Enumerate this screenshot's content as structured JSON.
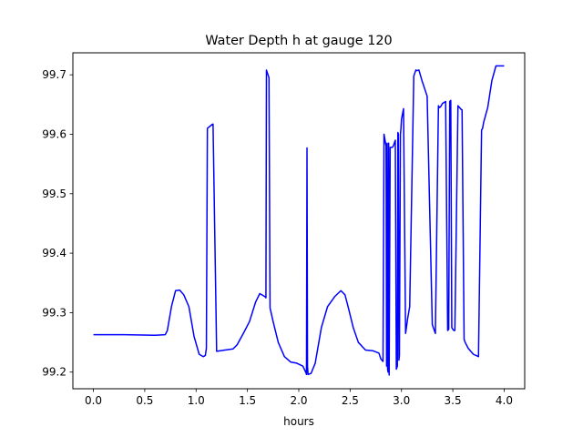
{
  "chart_data": {
    "type": "line",
    "title": "Water Depth h at gauge 120",
    "xlabel": "hours",
    "ylabel": "",
    "xlim": [
      -0.2,
      4.2
    ],
    "ylim": [
      99.172,
      99.737
    ],
    "xticks": [
      "0.0",
      "0.5",
      "1.0",
      "1.5",
      "2.0",
      "2.5",
      "3.0",
      "3.5",
      "4.0"
    ],
    "yticks": [
      "99.2",
      "99.3",
      "99.4",
      "99.5",
      "99.6",
      "99.7"
    ],
    "grid": false,
    "legend": "none",
    "series": [
      {
        "color": "#0000ff",
        "x": [
          0.0,
          0.3,
          0.6,
          0.7,
          0.72,
          0.76,
          0.8,
          0.84,
          0.88,
          0.93,
          0.98,
          1.03,
          1.07,
          1.09,
          1.1,
          1.11,
          1.16,
          1.165,
          1.2,
          1.28,
          1.36,
          1.4,
          1.46,
          1.52,
          1.58,
          1.62,
          1.67,
          1.68,
          1.685,
          1.71,
          1.72,
          1.75,
          1.8,
          1.86,
          1.92,
          1.98,
          2.04,
          2.07,
          2.075,
          2.08,
          2.085,
          2.09,
          2.12,
          2.16,
          2.22,
          2.28,
          2.35,
          2.41,
          2.45,
          2.48,
          2.53,
          2.58,
          2.65,
          2.72,
          2.78,
          2.8,
          2.82,
          2.83,
          2.84,
          2.85,
          2.855,
          2.86,
          2.865,
          2.87,
          2.875,
          2.88,
          2.89,
          2.9,
          2.91,
          2.92,
          2.94,
          2.95,
          2.96,
          2.965,
          2.97,
          2.975,
          2.98,
          2.99,
          2.995,
          3.0,
          3.02,
          3.04,
          3.06,
          3.08,
          3.12,
          3.14,
          3.15,
          3.17,
          3.2,
          3.25,
          3.3,
          3.31,
          3.33,
          3.36,
          3.37,
          3.38,
          3.4,
          3.43,
          3.45,
          3.46,
          3.47,
          3.48,
          3.49,
          3.5,
          3.51,
          3.52,
          3.55,
          3.58,
          3.59,
          3.61,
          3.62,
          3.65,
          3.7,
          3.75,
          3.78,
          3.79,
          3.8,
          3.84,
          3.88,
          3.92,
          3.96,
          4.0
        ],
        "y": [
          99.263,
          99.263,
          99.262,
          99.263,
          99.27,
          99.31,
          99.337,
          99.338,
          99.33,
          99.31,
          99.26,
          99.23,
          99.226,
          99.228,
          99.24,
          99.61,
          99.617,
          99.617,
          99.235,
          99.237,
          99.239,
          99.246,
          99.265,
          99.285,
          99.318,
          99.332,
          99.327,
          99.325,
          99.708,
          99.695,
          99.308,
          99.285,
          99.25,
          99.226,
          99.217,
          99.215,
          99.21,
          99.199,
          99.196,
          99.577,
          99.21,
          99.196,
          99.198,
          99.215,
          99.275,
          99.31,
          99.327,
          99.337,
          99.33,
          99.31,
          99.275,
          99.25,
          99.237,
          99.236,
          99.232,
          99.222,
          99.218,
          99.6,
          99.59,
          99.58,
          99.21,
          99.585,
          99.205,
          99.2,
          99.585,
          99.195,
          99.578,
          99.578,
          99.578,
          99.58,
          99.59,
          99.205,
          99.21,
          99.603,
          99.6,
          99.22,
          99.228,
          99.6,
          99.61,
          99.625,
          99.643,
          99.265,
          99.29,
          99.31,
          99.698,
          99.708,
          99.707,
          99.708,
          99.69,
          99.664,
          99.28,
          99.275,
          99.265,
          99.648,
          99.645,
          99.646,
          99.652,
          99.655,
          99.27,
          99.272,
          99.655,
          99.657,
          99.275,
          99.272,
          99.27,
          99.27,
          99.648,
          99.642,
          99.641,
          99.255,
          99.25,
          99.24,
          99.23,
          99.226,
          99.607,
          99.61,
          99.62,
          99.645,
          99.69,
          99.715,
          99.715,
          99.715
        ]
      }
    ]
  }
}
